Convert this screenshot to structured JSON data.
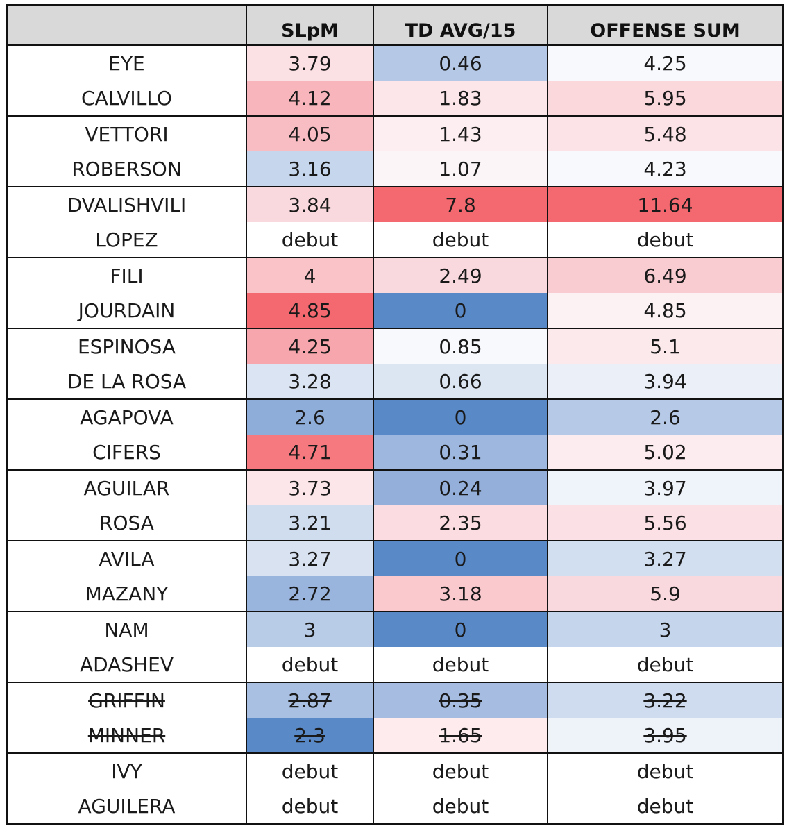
{
  "table": {
    "headers": [
      "",
      "SLpM",
      "TD AVG/15",
      "OFFENSE SUM"
    ],
    "rows": [
      {
        "name": "EYE",
        "cells": [
          {
            "text": "3.79",
            "bg": "#fbe0e4"
          },
          {
            "text": "0.46",
            "bg": "#b5c9e6"
          },
          {
            "text": "4.25",
            "bg": "#f8f9fd"
          }
        ],
        "scratched": false
      },
      {
        "name": "CALVILLO",
        "cells": [
          {
            "text": "4.12",
            "bg": "#f8b5bb"
          },
          {
            "text": "1.83",
            "bg": "#fce6ea"
          },
          {
            "text": "5.95",
            "bg": "#fad8dc"
          }
        ],
        "scratched": false
      },
      {
        "name": "VETTORI",
        "cells": [
          {
            "text": "4.05",
            "bg": "#f8bdc3"
          },
          {
            "text": "1.43",
            "bg": "#fdeef1"
          },
          {
            "text": "5.48",
            "bg": "#fbe3e7"
          }
        ],
        "scratched": false
      },
      {
        "name": "ROBERSON",
        "cells": [
          {
            "text": "3.16",
            "bg": "#c6d6ec"
          },
          {
            "text": "1.07",
            "bg": "#fcf5f7"
          },
          {
            "text": "4.23",
            "bg": "#f8f9fd"
          }
        ],
        "scratched": false
      },
      {
        "name": "DVALISHVILI",
        "cells": [
          {
            "text": "3.84",
            "bg": "#fad9de"
          },
          {
            "text": "7.8",
            "bg": "#f4696f"
          },
          {
            "text": "11.64",
            "bg": "#f4696f"
          }
        ],
        "scratched": false
      },
      {
        "name": "LOPEZ",
        "cells": [
          {
            "text": "debut",
            "bg": "#ffffff"
          },
          {
            "text": "debut",
            "bg": "#ffffff"
          },
          {
            "text": "debut",
            "bg": "#ffffff"
          }
        ],
        "scratched": false
      },
      {
        "name": "FILI",
        "cells": [
          {
            "text": "4",
            "bg": "#f9c3c8"
          },
          {
            "text": "2.49",
            "bg": "#fad9de"
          },
          {
            "text": "6.49",
            "bg": "#f9ccd1"
          }
        ],
        "scratched": false
      },
      {
        "name": "JOURDAIN",
        "cells": [
          {
            "text": "4.85",
            "bg": "#f4696f"
          },
          {
            "text": "0",
            "bg": "#5a89c8"
          },
          {
            "text": "4.85",
            "bg": "#fcf1f3"
          }
        ],
        "scratched": false
      },
      {
        "name": "ESPINOSA",
        "cells": [
          {
            "text": "4.25",
            "bg": "#f7a6ad"
          },
          {
            "text": "0.85",
            "bg": "#f8f9fd"
          },
          {
            "text": "5.1",
            "bg": "#fbe9ec"
          }
        ],
        "scratched": false
      },
      {
        "name": "DE LA ROSA",
        "cells": [
          {
            "text": "3.28",
            "bg": "#dae4f2"
          },
          {
            "text": "0.66",
            "bg": "#dce6f3"
          },
          {
            "text": "3.94",
            "bg": "#ebf0f8"
          }
        ],
        "scratched": false
      },
      {
        "name": "AGAPOVA",
        "cells": [
          {
            "text": "2.6",
            "bg": "#8fadd9"
          },
          {
            "text": "0",
            "bg": "#5a89c8"
          },
          {
            "text": "2.6",
            "bg": "#b6c9e6"
          }
        ],
        "scratched": false
      },
      {
        "name": "CIFERS",
        "cells": [
          {
            "text": "4.71",
            "bg": "#f5797f"
          },
          {
            "text": "0.31",
            "bg": "#9db7de"
          },
          {
            "text": "5.02",
            "bg": "#fcecef"
          }
        ],
        "scratched": false
      },
      {
        "name": "AGUILAR",
        "cells": [
          {
            "text": "3.73",
            "bg": "#fce6ea"
          },
          {
            "text": "0.24",
            "bg": "#93afda"
          },
          {
            "text": "3.97",
            "bg": "#eff3fa"
          }
        ],
        "scratched": false
      },
      {
        "name": "ROSA",
        "cells": [
          {
            "text": "3.21",
            "bg": "#d0ddef"
          },
          {
            "text": "2.35",
            "bg": "#fbdde1"
          },
          {
            "text": "5.56",
            "bg": "#fbe1e5"
          }
        ],
        "scratched": false
      },
      {
        "name": "AVILA",
        "cells": [
          {
            "text": "3.27",
            "bg": "#d8e2f1"
          },
          {
            "text": "0",
            "bg": "#5a89c8"
          },
          {
            "text": "3.27",
            "bg": "#d2dff0"
          }
        ],
        "scratched": false
      },
      {
        "name": "MAZANY",
        "cells": [
          {
            "text": "2.72",
            "bg": "#99b4dd"
          },
          {
            "text": "3.18",
            "bg": "#f9c9ce"
          },
          {
            "text": "5.9",
            "bg": "#fad9de"
          }
        ],
        "scratched": false
      },
      {
        "name": "NAM",
        "cells": [
          {
            "text": "3",
            "bg": "#b8cbe7"
          },
          {
            "text": "0",
            "bg": "#5a89c8"
          },
          {
            "text": "3",
            "bg": "#c5d5ec"
          }
        ],
        "scratched": false
      },
      {
        "name": "ADASHEV",
        "cells": [
          {
            "text": "debut",
            "bg": "#ffffff"
          },
          {
            "text": "debut",
            "bg": "#ffffff"
          },
          {
            "text": "debut",
            "bg": "#ffffff"
          }
        ],
        "scratched": false
      },
      {
        "name": "GRIFFIN",
        "cells": [
          {
            "text": "2.87",
            "bg": "#a9c0e3"
          },
          {
            "text": "0.35",
            "bg": "#a6bde1"
          },
          {
            "text": "3.22",
            "bg": "#cfdcef"
          }
        ],
        "scratched": true
      },
      {
        "name": "MINNER",
        "cells": [
          {
            "text": "2.3",
            "bg": "#5a89c8"
          },
          {
            "text": "1.65",
            "bg": "#fdebee"
          },
          {
            "text": "3.95",
            "bg": "#eef2f9"
          }
        ],
        "scratched": true
      },
      {
        "name": "IVY",
        "cells": [
          {
            "text": "debut",
            "bg": "#ffffff"
          },
          {
            "text": "debut",
            "bg": "#ffffff"
          },
          {
            "text": "debut",
            "bg": "#ffffff"
          }
        ],
        "scratched": false
      },
      {
        "name": "AGUILERA",
        "cells": [
          {
            "text": "debut",
            "bg": "#ffffff"
          },
          {
            "text": "debut",
            "bg": "#ffffff"
          },
          {
            "text": "debut",
            "bg": "#ffffff"
          }
        ],
        "scratched": false
      }
    ]
  }
}
